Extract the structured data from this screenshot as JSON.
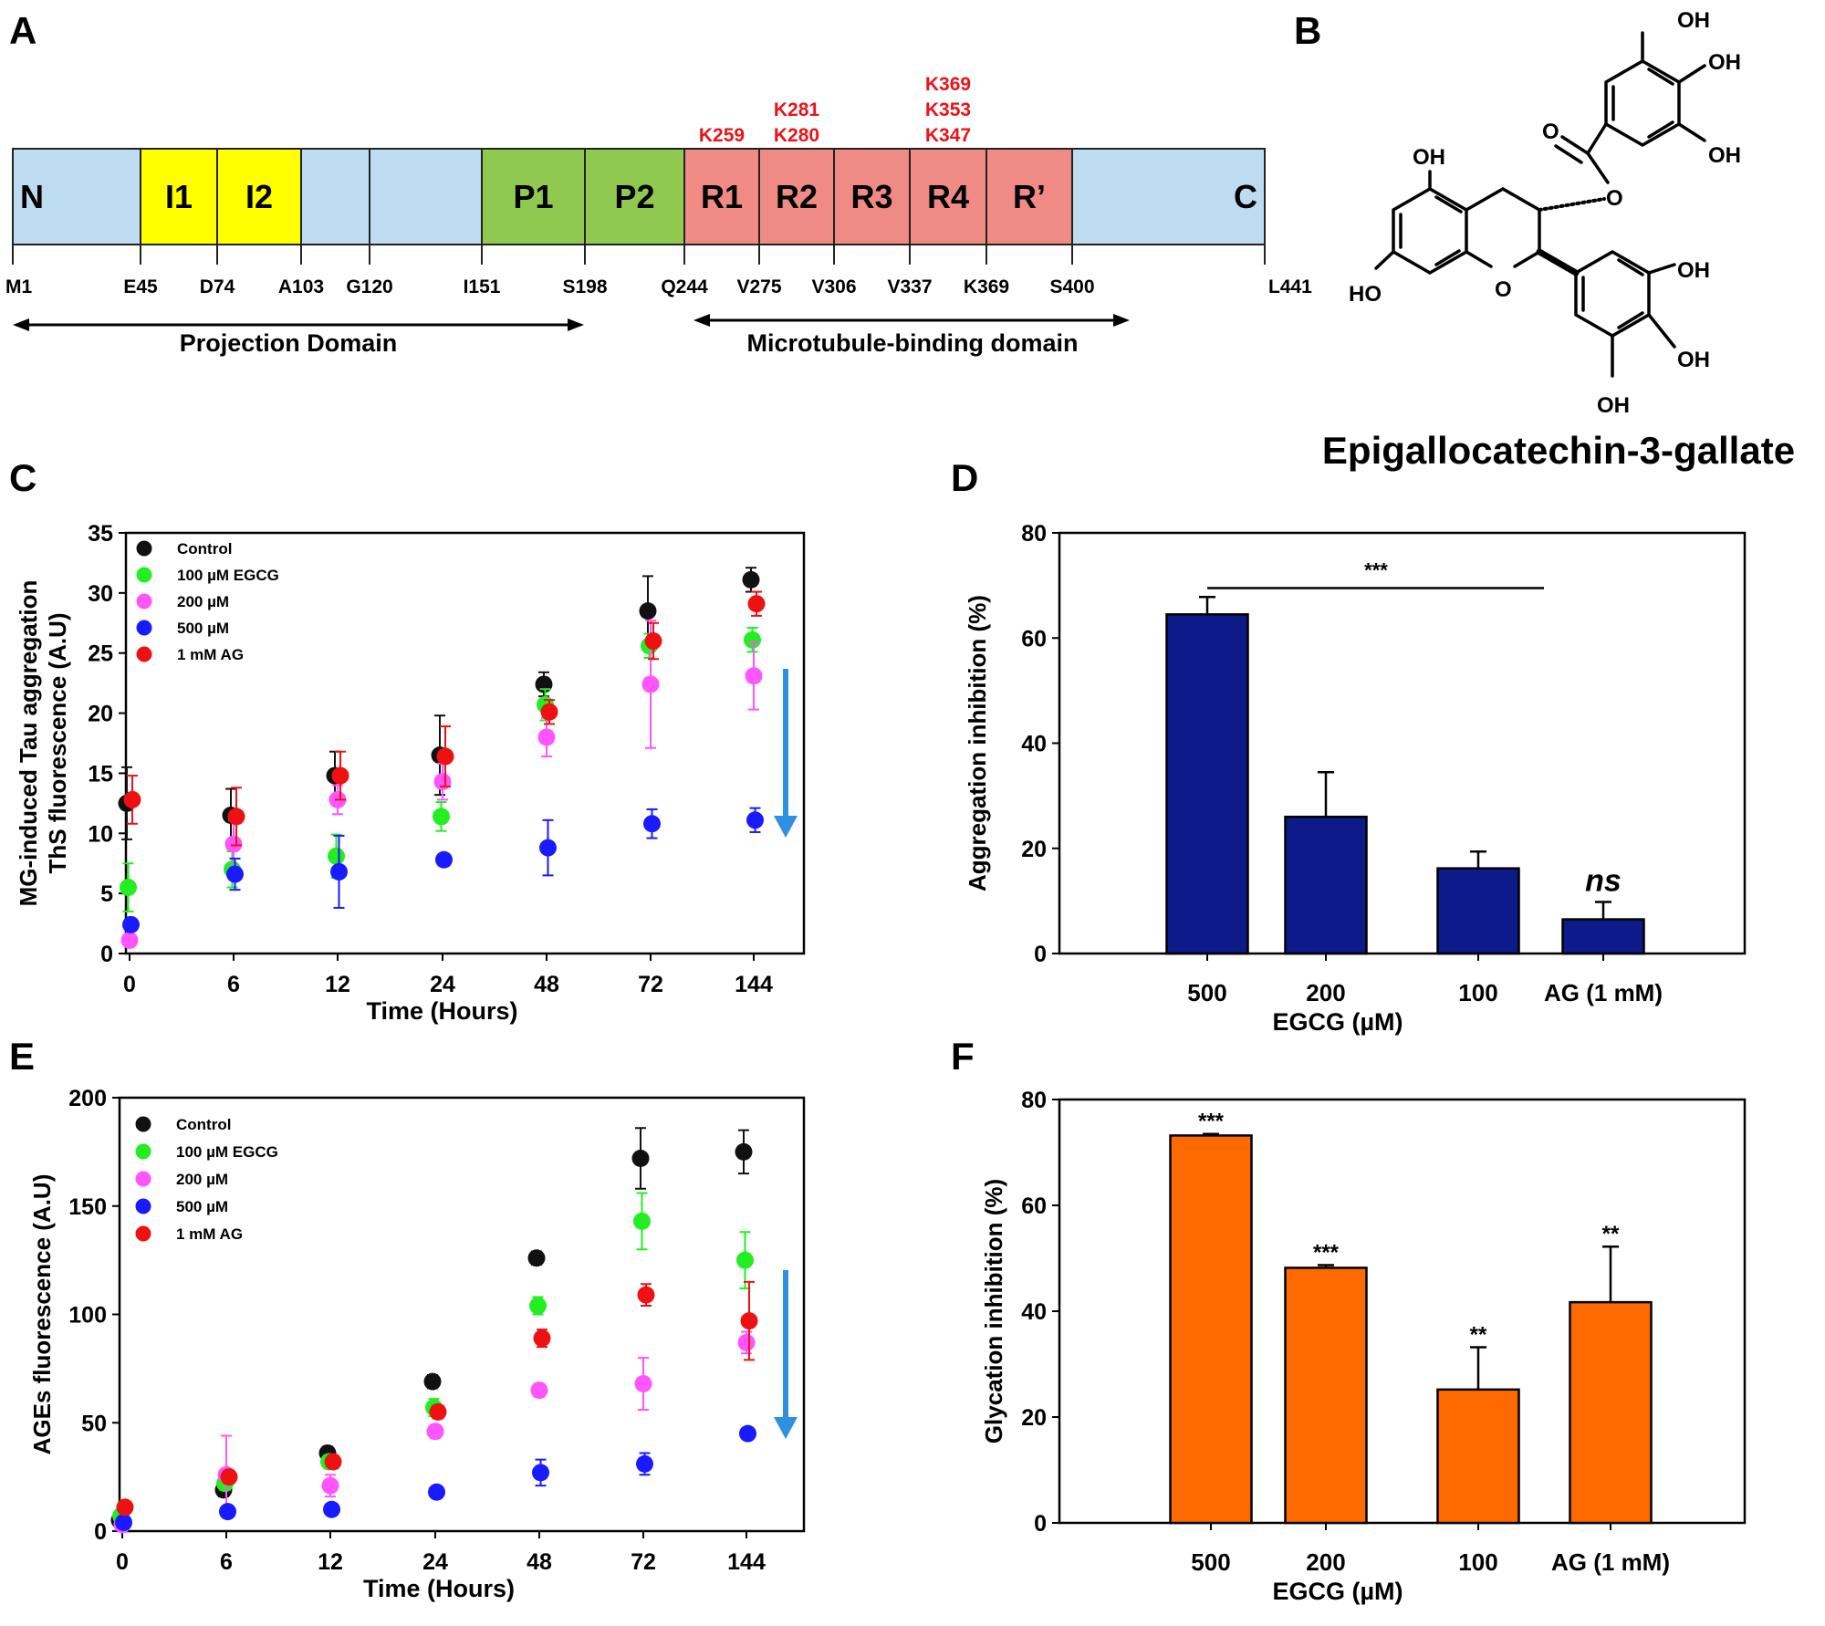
{
  "panel_labels": {
    "a": "A",
    "b": "B",
    "c": "C",
    "d": "D",
    "e": "E",
    "f": "F"
  },
  "colors": {
    "domain_n_c": "#bddcf2",
    "domain_i": "#ffff00",
    "domain_p": "#8fc94f",
    "domain_r": "#f08a84",
    "mutation_text": "#e8141a",
    "control": "#111111",
    "egcg100": "#22ee22",
    "egcg200": "#ff55ff",
    "egcg500": "#1a1aff",
    "ag": "#ee1111",
    "bar_navy": "#0d1a8a",
    "bar_orange": "#ff6a00",
    "arrow": "#2f8fe0"
  },
  "panel_a": {
    "segments": [
      {
        "label": "N",
        "fill": "n_c"
      },
      {
        "label": "I1",
        "fill": "i"
      },
      {
        "label": "I2",
        "fill": "i"
      },
      {
        "label": "",
        "fill": "n_c"
      },
      {
        "label": "",
        "fill": "n_c"
      },
      {
        "label": "P1",
        "fill": "p"
      },
      {
        "label": "P2",
        "fill": "p"
      },
      {
        "label": "R1",
        "fill": "r"
      },
      {
        "label": "R2",
        "fill": "r"
      },
      {
        "label": "R3",
        "fill": "r"
      },
      {
        "label": "R4",
        "fill": "r"
      },
      {
        "label": "R’",
        "fill": "r"
      },
      {
        "label": "C",
        "fill": "n_c"
      }
    ],
    "residues": [
      "M1",
      "E45",
      "D74",
      "A103",
      "G120",
      "I151",
      "S198",
      "Q244",
      "V275",
      "V306",
      "V337",
      "K369",
      "S400",
      "L441"
    ],
    "mutations": {
      "r1": [
        "K259"
      ],
      "r2": [
        "K281",
        "K280"
      ],
      "r4": [
        "K369",
        "K353",
        "K347"
      ]
    },
    "projection_domain": "Projection Domain",
    "mtb_domain": "Microtubule-binding domain"
  },
  "panel_b": {
    "compound_name": "Epigallocatechin-3-gallate",
    "atoms": {
      "oh": "OH",
      "ho": "HO",
      "o": "O"
    }
  },
  "legend": [
    "Control",
    "100 µM EGCG",
    "200 µM",
    "500 µM",
    "1 mM AG"
  ],
  "chart_data": [
    {
      "panel": "C",
      "type": "scatter",
      "xlabel": "Time (Hours)",
      "ylabel_lines": [
        "MG-induced Tau aggregation",
        "ThS fluorescence (A.U)"
      ],
      "categories": [
        "0",
        "6",
        "12",
        "24",
        "48",
        "72",
        "144"
      ],
      "ylim": [
        0,
        35
      ],
      "yticks": [
        0,
        5,
        10,
        15,
        20,
        25,
        30,
        35
      ],
      "series": [
        {
          "name": "Control",
          "values": [
            12.5,
            11.5,
            14.8,
            16.5,
            22.4,
            28.5,
            31.1
          ],
          "errors": [
            3.0,
            2.2,
            2.0,
            3.3,
            1.0,
            2.9,
            1.0
          ]
        },
        {
          "name": "100 µM EGCG",
          "values": [
            5.5,
            7.0,
            8.1,
            11.4,
            20.7,
            25.6,
            26.1
          ],
          "errors": [
            2.0,
            1.5,
            1.8,
            1.2,
            1.3,
            1.0,
            1.0
          ]
        },
        {
          "name": "200 µM",
          "values": [
            1.1,
            9.1,
            12.8,
            14.3,
            18.0,
            22.4,
            23.1
          ],
          "errors": [
            0.5,
            2.0,
            1.2,
            1.5,
            1.6,
            5.3,
            2.8
          ]
        },
        {
          "name": "500 µM",
          "values": [
            2.4,
            6.6,
            6.8,
            7.8,
            8.8,
            10.8,
            11.1
          ],
          "errors": [
            0.5,
            1.3,
            3.0,
            0.5,
            2.3,
            1.2,
            1.0
          ]
        },
        {
          "name": "1 mM AG",
          "values": [
            12.8,
            11.4,
            14.8,
            16.4,
            20.1,
            26.0,
            29.1
          ],
          "errors": [
            2.0,
            2.4,
            2.0,
            2.5,
            1.0,
            1.5,
            1.0
          ]
        }
      ]
    },
    {
      "panel": "D",
      "type": "bar",
      "xlabel": "EGCG (µM)",
      "ylabel": "Aggregation inhibition (%)",
      "categories": [
        "500",
        "200",
        "100",
        "AG (1 mM)"
      ],
      "ylim": [
        0,
        80
      ],
      "yticks": [
        0,
        20,
        40,
        60,
        80
      ],
      "values": [
        64.5,
        26.0,
        16.2,
        6.5
      ],
      "errors": [
        3.3,
        8.5,
        3.2,
        3.3
      ],
      "significance": {
        "bracket": "***",
        "labels": [
          "",
          "",
          "",
          "ns"
        ]
      }
    },
    {
      "panel": "E",
      "type": "scatter",
      "xlabel": "Time (Hours)",
      "ylabel": "AGEs fluorescence (A.U)",
      "categories": [
        "0",
        "6",
        "12",
        "24",
        "48",
        "72",
        "144"
      ],
      "ylim": [
        0,
        200
      ],
      "yticks": [
        0,
        50,
        100,
        150,
        200
      ],
      "series": [
        {
          "name": "Control",
          "values": [
            5,
            19,
            36,
            69,
            126,
            172,
            175
          ],
          "errors": [
            2,
            3,
            3,
            3,
            3,
            14,
            10
          ]
        },
        {
          "name": "100 µM EGCG",
          "values": [
            7,
            22,
            32,
            57,
            104,
            143,
            125
          ],
          "errors": [
            2,
            3,
            3,
            4,
            4,
            13,
            13
          ]
        },
        {
          "name": "200 µM",
          "values": [
            3,
            26,
            21,
            46,
            65,
            68,
            87
          ],
          "errors": [
            1,
            18,
            5,
            3,
            3,
            12,
            5
          ]
        },
        {
          "name": "500 µM",
          "values": [
            4,
            9,
            10,
            18,
            27,
            31,
            45
          ],
          "errors": [
            1,
            1,
            1,
            1,
            6,
            5,
            1
          ]
        },
        {
          "name": "1 mM AG",
          "values": [
            11,
            25,
            32,
            55,
            89,
            109,
            97
          ],
          "errors": [
            2,
            3,
            3,
            3,
            4,
            5,
            18
          ]
        }
      ]
    },
    {
      "panel": "F",
      "type": "bar",
      "xlabel": "EGCG (µM)",
      "ylabel": "Glycation inhibition (%)",
      "categories": [
        "500",
        "200",
        "100",
        "AG (1 mM)"
      ],
      "ylim": [
        0,
        80
      ],
      "yticks": [
        0,
        20,
        40,
        60,
        80
      ],
      "values": [
        73.2,
        48.2,
        25.2,
        41.7
      ],
      "errors": [
        0.3,
        0.5,
        8.0,
        10.5
      ],
      "significance": {
        "labels": [
          "***",
          "***",
          "**",
          "**"
        ]
      }
    }
  ]
}
